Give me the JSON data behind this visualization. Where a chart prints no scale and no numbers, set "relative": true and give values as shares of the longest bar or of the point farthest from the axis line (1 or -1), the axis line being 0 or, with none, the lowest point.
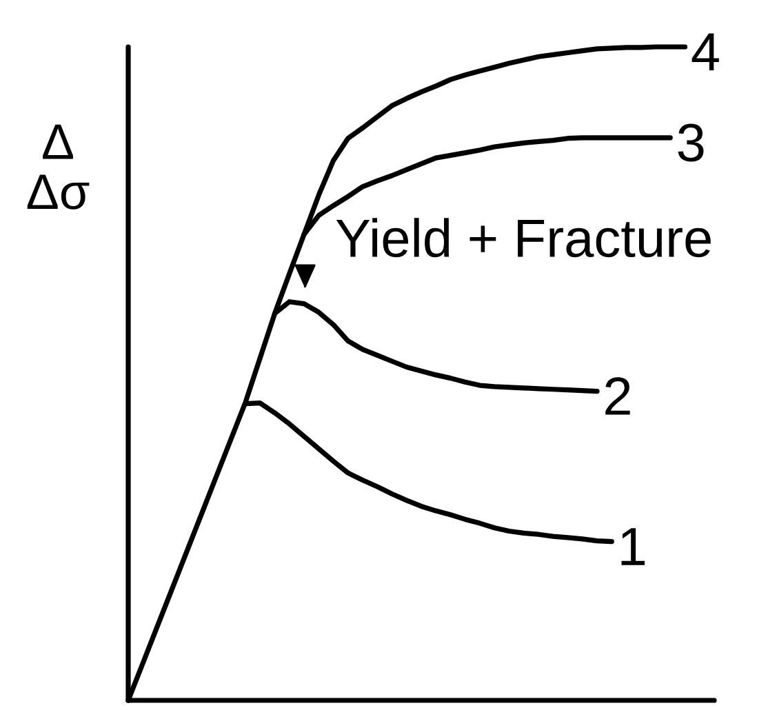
{
  "chart_data": {
    "type": "line",
    "relative": true,
    "ylabel": "Δ\nΔσ",
    "categories": [
      null,
      null,
      null,
      null,
      null,
      null,
      null,
      null,
      null,
      null,
      null,
      null,
      null,
      null,
      null,
      null,
      null,
      null,
      null,
      null,
      null,
      null,
      null,
      null,
      null,
      null,
      null,
      null,
      null,
      null,
      null,
      null,
      null,
      null,
      null,
      null,
      null,
      null,
      null,
      null,
      null
    ],
    "series": [
      {
        "name": "1",
        "color": "#000000",
        "values": [
          null,
          null,
          null,
          null,
          null,
          null,
          null,
          null,
          0.454,
          0.455,
          0.44,
          0.423,
          0.404,
          0.385,
          0.366,
          0.348,
          0.337,
          0.327,
          0.316,
          0.306,
          0.297,
          0.29,
          0.284,
          0.277,
          0.271,
          0.264,
          0.259,
          0.256,
          0.254,
          0.251,
          0.249,
          0.247,
          0.244,
          0.243,
          null,
          null,
          null,
          null,
          null,
          null,
          null
        ]
      },
      {
        "name": "2",
        "color": "#000000",
        "values": [
          null,
          null,
          null,
          null,
          null,
          null,
          null,
          null,
          null,
          null,
          0.592,
          0.61,
          0.607,
          0.594,
          0.575,
          0.55,
          0.537,
          0.528,
          0.519,
          0.51,
          0.504,
          0.498,
          0.493,
          0.487,
          0.482,
          0.48,
          0.479,
          0.478,
          0.477,
          0.476,
          0.475,
          0.474,
          0.473,
          null,
          null,
          null,
          null,
          null,
          null,
          null,
          null
        ]
      },
      {
        "name": "3",
        "color": "#000000",
        "values": [
          null,
          null,
          null,
          null,
          null,
          null,
          null,
          null,
          null,
          null,
          null,
          null,
          0.713,
          0.742,
          0.757,
          0.771,
          0.786,
          0.795,
          0.803,
          0.812,
          0.821,
          0.83,
          0.834,
          0.838,
          0.842,
          0.847,
          0.85,
          0.853,
          0.855,
          0.857,
          0.86,
          0.861,
          0.861,
          0.861,
          0.861,
          0.861,
          0.861,
          0.861,
          null,
          null,
          null
        ]
      },
      {
        "name": "4",
        "color": "#000000",
        "values": [
          0,
          0.057,
          0.114,
          0.171,
          0.228,
          0.285,
          0.342,
          0.399,
          0.456,
          0.524,
          0.592,
          0.653,
          0.713,
          0.773,
          0.826,
          0.86,
          0.876,
          0.893,
          0.91,
          0.921,
          0.931,
          0.94,
          0.95,
          0.957,
          0.963,
          0.969,
          0.975,
          0.98,
          0.985,
          0.988,
          0.991,
          0.994,
          0.997,
          0.998,
          0.999,
          0.999,
          1.0,
          1.0,
          1.0,
          null,
          null
        ]
      }
    ],
    "annotations": [
      "Yield + Fracture"
    ]
  }
}
